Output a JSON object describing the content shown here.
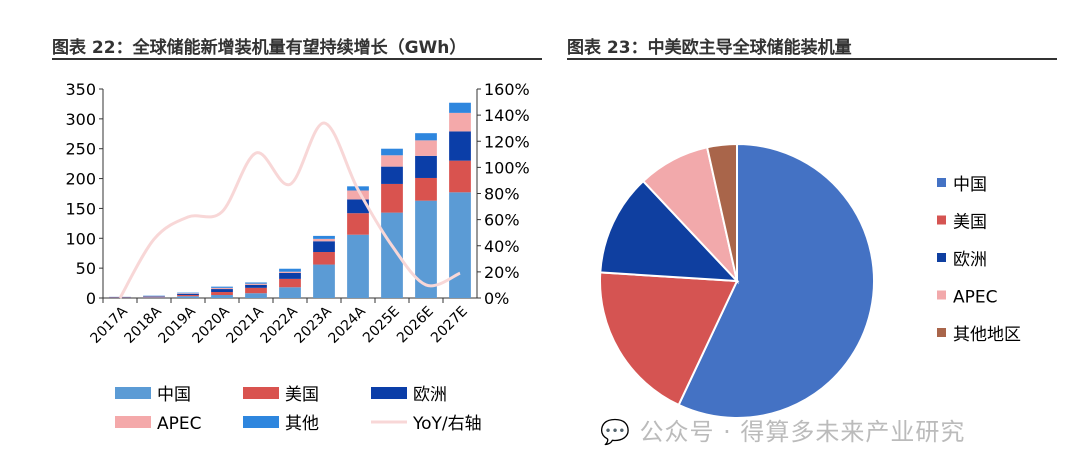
{
  "chart_data": [
    {
      "type": "bar",
      "stacked": true,
      "title": "图表 22：全球储能新增装机量有望持续增长（GWh）",
      "categories": [
        "2017A",
        "2018A",
        "2019A",
        "2020A",
        "2021A",
        "2022A",
        "2023A",
        "2024A",
        "2025E",
        "2026E",
        "2027E"
      ],
      "ylim": [
        0,
        350
      ],
      "yticks": [
        0,
        50,
        100,
        150,
        200,
        250,
        300,
        350
      ],
      "y2lim": [
        0,
        1.6
      ],
      "y2ticks": [
        "0%",
        "20%",
        "40%",
        "60%",
        "80%",
        "100%",
        "120%",
        "140%",
        "160%"
      ],
      "series": [
        {
          "name": "中国",
          "color": "#5b9bd5",
          "values": [
            0.5,
            1,
            3,
            5,
            8,
            18,
            56,
            106,
            143,
            163,
            177
          ]
        },
        {
          "name": "美国",
          "color": "#d9534f",
          "values": [
            0.5,
            1,
            2,
            5,
            9,
            14,
            21,
            36,
            48,
            38,
            53
          ]
        },
        {
          "name": "欧洲",
          "color": "#0b3ea8",
          "values": [
            0.5,
            1,
            2,
            5,
            5,
            10,
            18,
            23,
            29,
            37,
            49
          ]
        },
        {
          "name": "APEC",
          "color": "#f4a9aa",
          "values": [
            0.3,
            0.5,
            1,
            2,
            2,
            2,
            4,
            15,
            19,
            26,
            31
          ]
        },
        {
          "name": "其他",
          "color": "#2e86de",
          "values": [
            0.2,
            0.5,
            1,
            2,
            2,
            5,
            5,
            7,
            11,
            12,
            17
          ]
        }
      ],
      "line": {
        "name": "YoY/右轴",
        "color": "#f8d7d7",
        "values": [
          0,
          0.45,
          0.62,
          0.66,
          1.11,
          0.87,
          1.34,
          0.83,
          0.4,
          0.1,
          0.19
        ]
      },
      "legend": "bottom"
    },
    {
      "type": "pie",
      "title": "图表 23：中美欧主导全球储能装机量",
      "slices": [
        {
          "name": "中国",
          "value": 57,
          "color": "#4472c4"
        },
        {
          "name": "美国",
          "value": 19,
          "color": "#d55452"
        },
        {
          "name": "欧洲",
          "value": 12,
          "color": "#0f3fa0"
        },
        {
          "name": "APEC",
          "value": 8.5,
          "color": "#f2a9ab"
        },
        {
          "name": "其他地区",
          "value": 3.5,
          "color": "#a9654a"
        }
      ],
      "legend": "right"
    }
  ],
  "watermark": "公众号 · 得算多未来产业研究"
}
